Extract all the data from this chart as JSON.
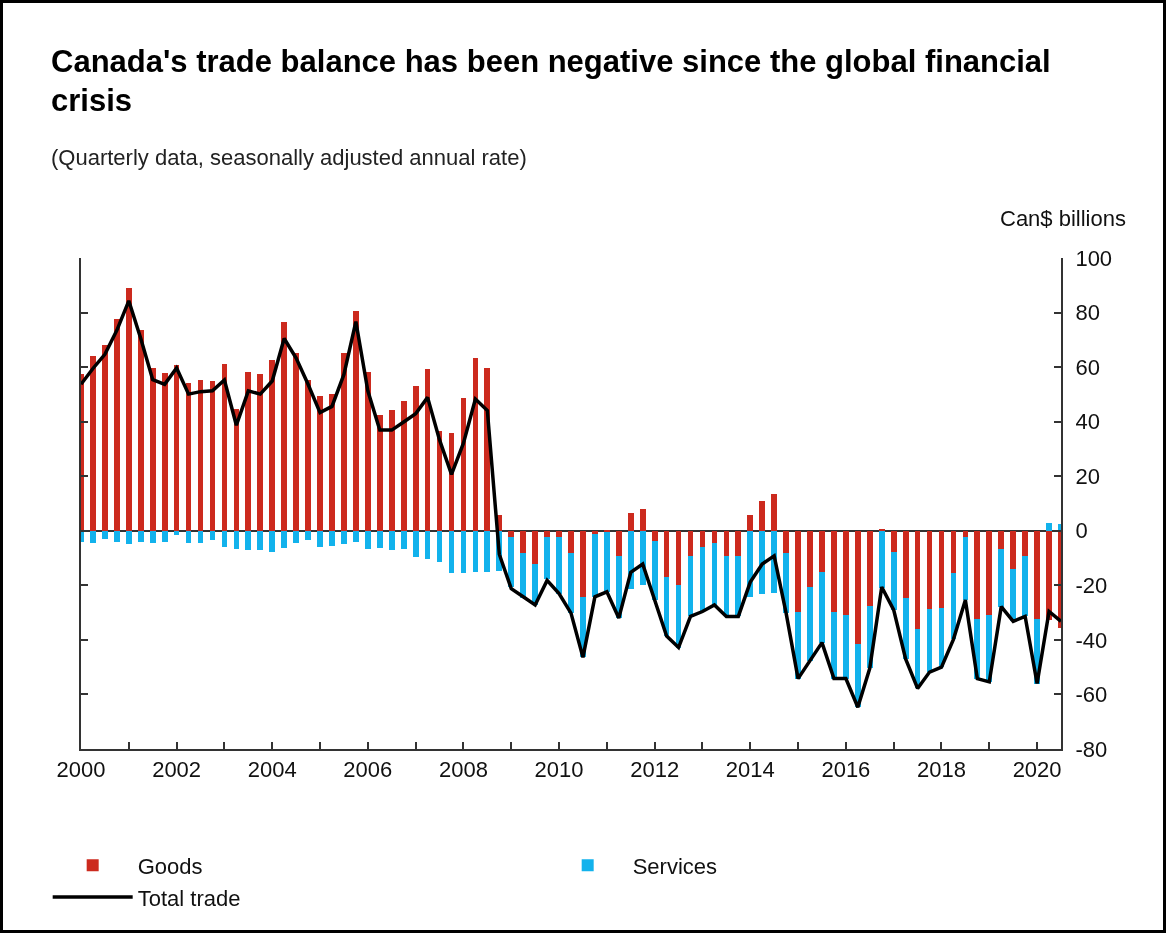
{
  "chart_data": {
    "type": "bar",
    "title": "Canada's trade balance has been negative since the global financial crisis",
    "subtitle": "(Quarterly data, seasonally adjusted annual rate)",
    "ylabel": "Can$ billions",
    "stacked": true,
    "legend": "bottom",
    "x": [
      2000,
      2000.25,
      2000.5,
      2000.75,
      2001,
      2001.25,
      2001.5,
      2001.75,
      2002,
      2002.25,
      2002.5,
      2002.75,
      2003,
      2003.25,
      2003.5,
      2003.75,
      2004,
      2004.25,
      2004.5,
      2004.75,
      2005,
      2005.25,
      2005.5,
      2005.75,
      2006,
      2006.25,
      2006.5,
      2006.75,
      2007,
      2007.25,
      2007.5,
      2007.75,
      2008,
      2008.25,
      2008.5,
      2008.75,
      2009,
      2009.25,
      2009.5,
      2009.75,
      2010,
      2010.25,
      2010.5,
      2010.75,
      2011,
      2011.25,
      2011.5,
      2011.75,
      2012,
      2012.25,
      2012.5,
      2012.75,
      2013,
      2013.25,
      2013.5,
      2013.75,
      2014,
      2014.25,
      2014.5,
      2014.75,
      2015,
      2015.25,
      2015.5,
      2015.75,
      2016,
      2016.25,
      2016.5,
      2016.75,
      2017,
      2017.25,
      2017.5,
      2017.75,
      2018,
      2018.25,
      2018.5,
      2018.75,
      2019,
      2019.25,
      2019.5,
      2019.75,
      2020,
      2020.25,
      2020.5
    ],
    "xlim": [
      2000,
      2020.5
    ],
    "xticks": [
      2000,
      {
        "value": 2001,
        "label": null
      },
      2002,
      {
        "value": 2003,
        "label": null
      },
      2004,
      {
        "value": 2005,
        "label": null
      },
      2006,
      {
        "value": 2007,
        "label": null
      },
      2008,
      {
        "value": 2009,
        "label": null
      },
      2010,
      {
        "value": 2011,
        "label": null
      },
      2012,
      {
        "value": 2013,
        "label": null
      },
      2014,
      {
        "value": 2015,
        "label": null
      },
      2016,
      {
        "value": 2017,
        "label": null
      },
      2018,
      {
        "value": 2019,
        "label": null
      },
      2020
    ],
    "ylim": [
      -80,
      100
    ],
    "yticks": [
      -80,
      -60,
      -40,
      -20,
      0,
      20,
      40,
      60,
      80,
      100
    ],
    "series": [
      {
        "name": "Goods",
        "color": "#cc2a1e",
        "values": [
          57.4,
          63.9,
          68.1,
          77.5,
          89.1,
          73.7,
          59.7,
          57.9,
          60.9,
          54,
          55.3,
          54.9,
          61.2,
          44.7,
          58.3,
          57.3,
          62.7,
          76.7,
          65.1,
          55.3,
          49.3,
          50,
          65.1,
          80.7,
          58.3,
          42.3,
          44.4,
          47.5,
          53.1,
          59.4,
          36.6,
          36,
          48.7,
          63.3,
          59.5,
          5.8,
          -2.4,
          -8,
          -12.2,
          -2.4,
          -2.4,
          -8,
          -24.2,
          -1.2,
          -0.5,
          -9.2,
          6.6,
          8,
          -3.8,
          -17,
          -20,
          -9.2,
          -6,
          -4.4,
          -9.2,
          -9.2,
          5.8,
          10.8,
          13.5,
          -8,
          -29.6,
          -20.6,
          -15.2,
          -29.6,
          -30.8,
          -41.6,
          -27.6,
          0.5,
          -7.8,
          -24.6,
          -36,
          -28.8,
          -28.4,
          -15.6,
          -2.4,
          -32.4,
          -30.8,
          -6.6,
          -14,
          -9.2,
          -32.4,
          -32.6,
          -35.6
        ]
      },
      {
        "name": "Services",
        "color": "#12b2ec",
        "values": [
          -4,
          -4.4,
          -3,
          -4,
          -4.8,
          -4,
          -4.3,
          -4.2,
          -1.4,
          -4.5,
          -4.6,
          -3.5,
          -5.8,
          -6.8,
          -7,
          -7.2,
          -7.8,
          -6.2,
          -4.3,
          -3.2,
          -6,
          -5.6,
          -5,
          -4.2,
          -6.8,
          -6.2,
          -7.2,
          -6.8,
          -9.6,
          -10.4,
          -11.6,
          -15.6,
          -15.6,
          -15,
          -15,
          -14.6,
          -18.2,
          -16.8,
          -15,
          -15.2,
          -20.6,
          -22.2,
          -22.2,
          -23,
          -21.9,
          -22.8,
          -21.2,
          -19.8,
          -21.6,
          -21.6,
          -22.8,
          -22.2,
          -23.6,
          -22.8,
          -22.2,
          -22.2,
          -24.2,
          -23.3,
          -22.8,
          -22.2,
          -24.6,
          -27,
          -25.8,
          -24.6,
          -23.4,
          -23.1,
          -22.8,
          -21.1,
          -21.2,
          -22.4,
          -21.8,
          -23,
          -21.6,
          -24.2,
          -23,
          -21.8,
          -24.6,
          -21.2,
          -19.2,
          -22.2,
          -23.6,
          3,
          2.4
        ]
      },
      {
        "name": "Total trade",
        "type": "line",
        "color": "#000000",
        "values": [
          53.7,
          59.5,
          64.7,
          73.5,
          84.3,
          70.5,
          55.4,
          53.7,
          59.7,
          50.1,
          51,
          51.3,
          55.3,
          38.7,
          51.3,
          50.1,
          54.9,
          70.5,
          63.3,
          53.7,
          43.3,
          45.6,
          57.3,
          76.7,
          51.3,
          36.9,
          36.9,
          39.9,
          42.9,
          48.9,
          33.3,
          20.7,
          32.1,
          48.3,
          44.1,
          -8.6,
          -21.2,
          -24.2,
          -27.2,
          -18.2,
          -23,
          -30.2,
          -46.4,
          -24.2,
          -22.4,
          -32,
          -15.2,
          -12.2,
          -25.4,
          -38.6,
          -42.8,
          -31.4,
          -29.6,
          -27.2,
          -31.4,
          -31.4,
          -18.8,
          -12.2,
          -9.2,
          -30.2,
          -54.2,
          -47.6,
          -41,
          -54.2,
          -54.2,
          -64.7,
          -50.4,
          -20.6,
          -29,
          -47,
          -57.8,
          -51.8,
          -50,
          -39.8,
          -25.4,
          -54.2,
          -55.4,
          -27.8,
          -33.2,
          -31.4,
          -56,
          -29.6,
          -33.2
        ]
      }
    ]
  }
}
